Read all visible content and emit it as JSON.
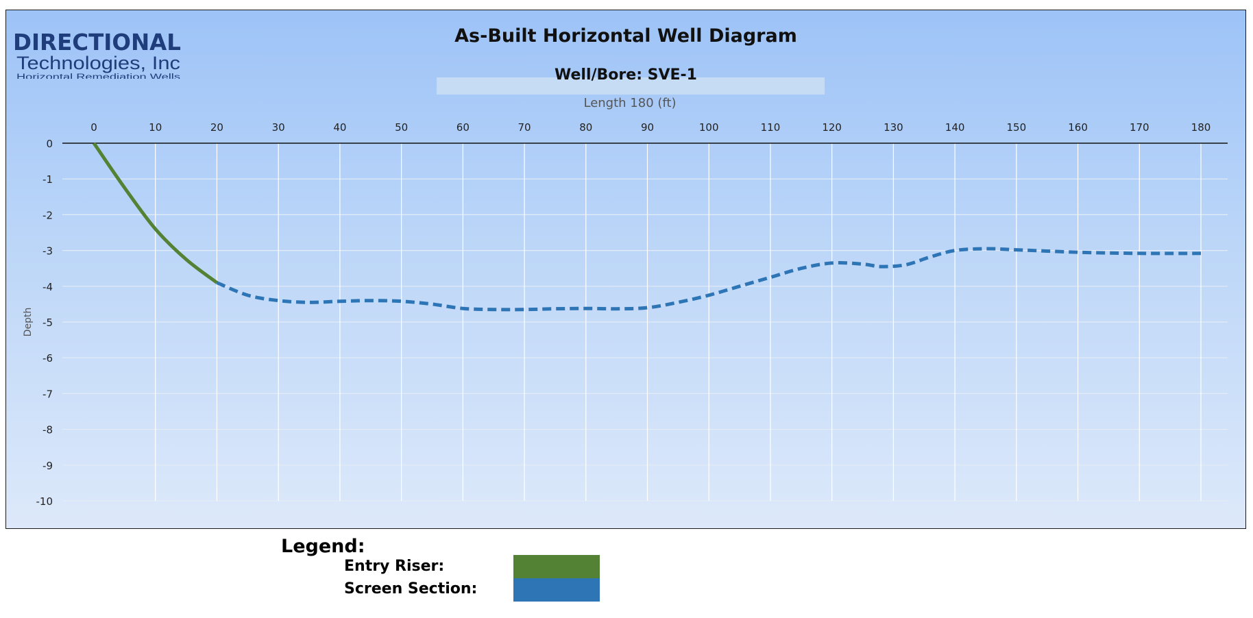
{
  "logo": {
    "line1": "DIRECTIONAL",
    "line2": "Technologies, Inc",
    "line3": "Horizontal Remediation Wells"
  },
  "chart_data": {
    "type": "line",
    "title": "As-Built Horizontal Well Diagram",
    "subtitle": "Well/Bore: SVE-1",
    "xlabel": "Length 180 (ft)",
    "ylabel": "Depth",
    "xlim": [
      0,
      180
    ],
    "ylim": [
      -10,
      0
    ],
    "xticks": [
      0,
      10,
      20,
      30,
      40,
      50,
      60,
      70,
      80,
      90,
      100,
      110,
      120,
      130,
      140,
      150,
      160,
      170,
      180
    ],
    "yticks": [
      0,
      -1,
      -2,
      -3,
      -4,
      -5,
      -6,
      -7,
      -8,
      -9,
      -10
    ],
    "x_axis_position": "top",
    "grid": true,
    "series": [
      {
        "name": "Entry Riser:",
        "color": "#548235",
        "style": "solid",
        "points": [
          [
            0,
            0
          ],
          [
            5,
            -1.25
          ],
          [
            10,
            -2.4
          ],
          [
            15,
            -3.25
          ],
          [
            20,
            -3.9
          ]
        ]
      },
      {
        "name": "Screen Section:",
        "color": "#2e75b6",
        "style": "dashed",
        "points": [
          [
            20,
            -3.9
          ],
          [
            25,
            -4.25
          ],
          [
            30,
            -4.4
          ],
          [
            35,
            -4.45
          ],
          [
            40,
            -4.42
          ],
          [
            45,
            -4.4
          ],
          [
            50,
            -4.42
          ],
          [
            55,
            -4.5
          ],
          [
            60,
            -4.62
          ],
          [
            65,
            -4.65
          ],
          [
            70,
            -4.65
          ],
          [
            75,
            -4.63
          ],
          [
            80,
            -4.62
          ],
          [
            85,
            -4.63
          ],
          [
            90,
            -4.6
          ],
          [
            95,
            -4.45
          ],
          [
            100,
            -4.25
          ],
          [
            105,
            -4.0
          ],
          [
            110,
            -3.75
          ],
          [
            115,
            -3.5
          ],
          [
            120,
            -3.35
          ],
          [
            125,
            -3.38
          ],
          [
            128,
            -3.45
          ],
          [
            132,
            -3.4
          ],
          [
            136,
            -3.18
          ],
          [
            140,
            -3.0
          ],
          [
            145,
            -2.95
          ],
          [
            150,
            -2.98
          ],
          [
            160,
            -3.05
          ],
          [
            170,
            -3.08
          ],
          [
            180,
            -3.08
          ]
        ]
      }
    ]
  },
  "legend": {
    "title": "Legend:",
    "items": [
      {
        "label": "Entry Riser:",
        "color": "#548235"
      },
      {
        "label": "Screen Section:",
        "color": "#2e75b6"
      }
    ]
  }
}
